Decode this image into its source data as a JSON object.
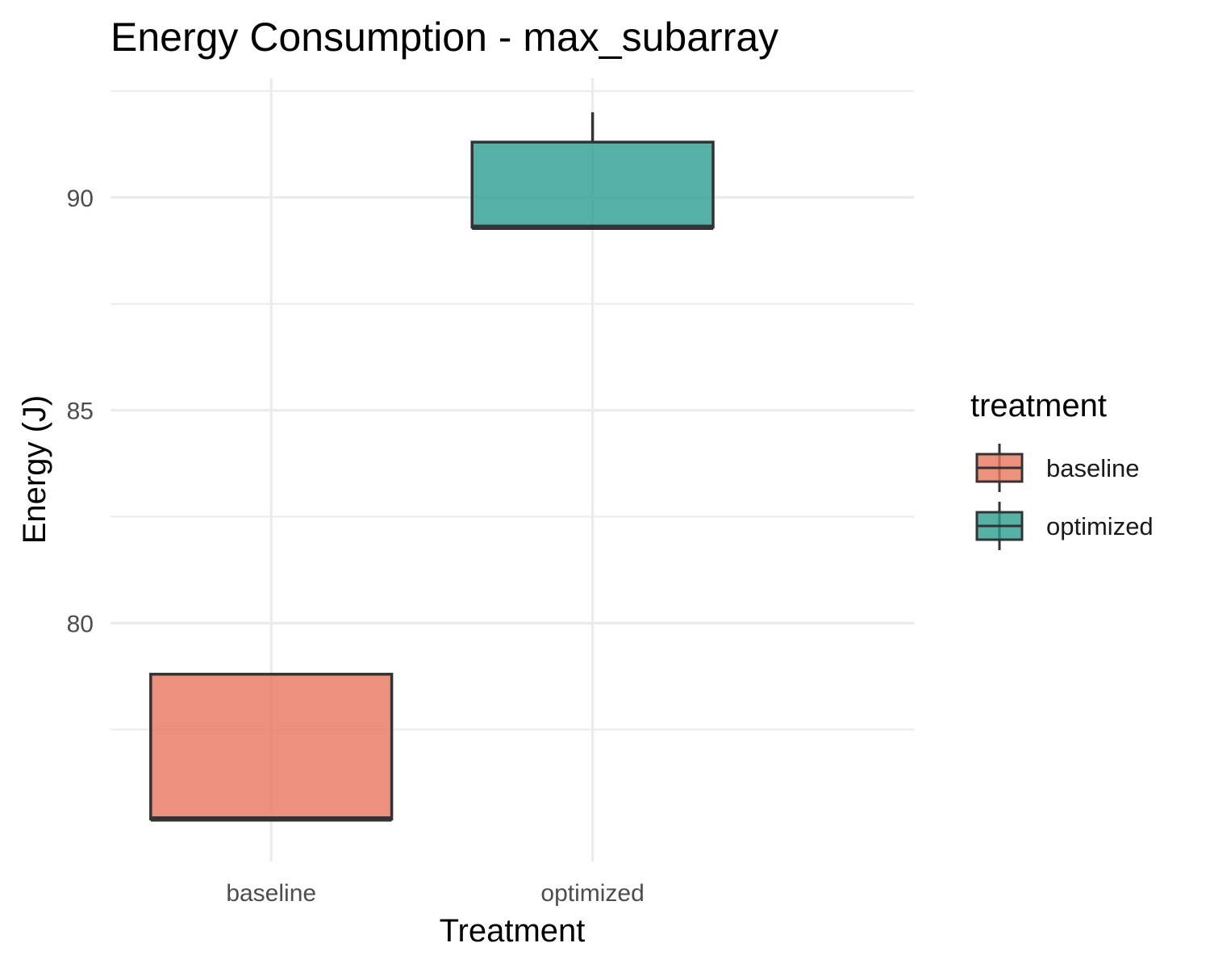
{
  "chart_data": {
    "type": "boxplot",
    "title": "Energy Consumption - max_subarray",
    "xlabel": "Treatment",
    "ylabel": "Energy (J)",
    "categories": [
      "baseline",
      "optimized"
    ],
    "ylim": [
      74.4,
      92.8
    ],
    "y_ticks": [
      80,
      85,
      90
    ],
    "y_tick_labels": [
      "80",
      "85",
      "90"
    ],
    "grid": true,
    "legend": {
      "title": "treatment",
      "position": "right",
      "entries": [
        "baseline",
        "optimized"
      ]
    },
    "series": [
      {
        "name": "baseline",
        "min": 75.4,
        "q1": 75.4,
        "median": 75.4,
        "q3": 78.8,
        "max": 78.8
      },
      {
        "name": "optimized",
        "min": 89.3,
        "q1": 89.3,
        "median": 89.3,
        "q3": 91.3,
        "max": 92.0
      }
    ],
    "colors": {
      "baseline": "#e8765d",
      "optimized": "#2a9d8f",
      "outline": "#333333"
    }
  }
}
